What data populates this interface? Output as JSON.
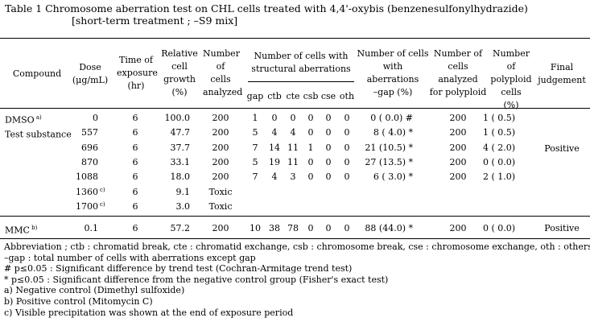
{
  "title": {
    "line1": "Table 1   Chromosome aberration test on CHL cells treated with 4,4'-oxybis (benzenesulfonylhydrazide)",
    "line2": "[short-term treatment ; –S9 mix]"
  },
  "headers": {
    "compound": "Compound",
    "dose": [
      "Dose",
      "(μg/mL)"
    ],
    "exposure": [
      "Time of",
      "exposure",
      "(hr)"
    ],
    "growth": [
      "Relative",
      "cell",
      "growth",
      "(%)"
    ],
    "ncells": [
      "Number",
      "of",
      "cells",
      "analyzed"
    ],
    "struct": [
      "Number of cells with",
      "structural aberrations"
    ],
    "abbr": [
      "gap",
      "ctb",
      "cte",
      "csb",
      "cse",
      "oth"
    ],
    "witherr": [
      "Number of cells",
      "with",
      "aberrations",
      "–gap (%)"
    ],
    "polyanalyzed": [
      "Number of",
      "cells",
      "analyzed",
      "for polyploid"
    ],
    "polyploid": [
      "Number of",
      "polyploid",
      "cells",
      "(%)"
    ],
    "judgement": [
      "Final",
      "judgement"
    ]
  },
  "rows": [
    {
      "compound": "DMSO",
      "sup": "a)",
      "dose": "0",
      "exposure": "6",
      "growth": "100.0",
      "ncells": "200",
      "ab": [
        "1",
        "0",
        "0",
        "0",
        "0",
        "0"
      ],
      "witherr": "0 ( 0.0) #",
      "poly_analyzed": "200",
      "poly": "1 ( 0.5)"
    },
    {
      "compound": "Test substance",
      "sup": "",
      "dose": "557",
      "exposure": "6",
      "growth": "47.7",
      "ncells": "200",
      "ab": [
        "5",
        "4",
        "4",
        "0",
        "0",
        "0"
      ],
      "witherr": "8 ( 4.0) *",
      "poly_analyzed": "200",
      "poly": "1 ( 0.5)"
    },
    {
      "compound": "",
      "sup": "",
      "dose": "696",
      "exposure": "6",
      "growth": "37.7",
      "ncells": "200",
      "ab": [
        "7",
        "14",
        "11",
        "1",
        "0",
        "0"
      ],
      "witherr": "21 (10.5) *",
      "poly_analyzed": "200",
      "poly": "4 ( 2.0)"
    },
    {
      "compound": "",
      "sup": "",
      "dose": "870",
      "exposure": "6",
      "growth": "33.1",
      "ncells": "200",
      "ab": [
        "5",
        "19",
        "11",
        "0",
        "0",
        "0"
      ],
      "witherr": "27 (13.5) *",
      "poly_analyzed": "200",
      "poly": "0 ( 0.0)"
    },
    {
      "compound": "",
      "sup": "",
      "dose": "1088",
      "exposure": "6",
      "growth": "18.0",
      "ncells": "200",
      "ab": [
        "7",
        "4",
        "3",
        "0",
        "0",
        "0"
      ],
      "witherr": "6 ( 3.0) *",
      "poly_analyzed": "200",
      "poly": "2 ( 1.0)"
    },
    {
      "compound": "",
      "sup": "c)",
      "dose": "1360",
      "exposure": "6",
      "growth": "9.1",
      "ncells": "Toxic",
      "ab": [
        "",
        "",
        "",
        "",
        "",
        ""
      ],
      "witherr": "",
      "poly_analyzed": "",
      "poly": ""
    },
    {
      "compound": "",
      "sup": "c)",
      "dose": "1700",
      "exposure": "6",
      "growth": "3.0",
      "ncells": "Toxic",
      "ab": [
        "",
        "",
        "",
        "",
        "",
        ""
      ],
      "witherr": "",
      "poly_analyzed": "",
      "poly": ""
    }
  ],
  "judgement_test": "Positive",
  "mmc": {
    "compound": "MMC",
    "sup": "b)",
    "dose": "0.1",
    "exposure": "6",
    "growth": "57.2",
    "ncells": "200",
    "ab": [
      "10",
      "38",
      "78",
      "0",
      "0",
      "0"
    ],
    "witherr": "88 (44.0) *",
    "poly_analyzed": "200",
    "poly": "0 ( 0.0)",
    "judgement": "Positive"
  },
  "footnotes": [
    "Abbreviation ; ctb : chromatid break,  cte : chromatid exchange,  csb : chromosome break,  cse : chromosome exchange,  oth : others",
    "–gap : total number of cells with aberrations except gap",
    "#  p≤0.05 : Significant difference by trend test (Cochran-Armitage trend test)",
    "*  p≤0.05 : Significant difference from the negative control group (Fisher's exact test)",
    "a) Negative control (Dimethyl sulfoxide)",
    "b) Positive control (Mitomycin C)",
    "c) Visible precipitation was shown at the end of exposure period"
  ]
}
